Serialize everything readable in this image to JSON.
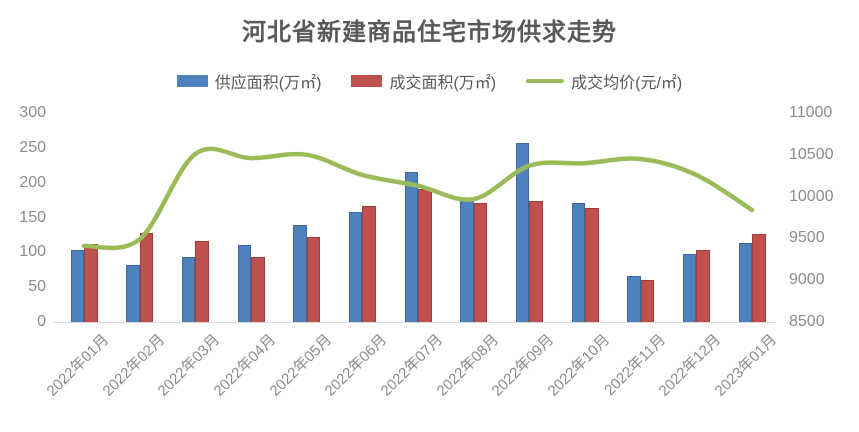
{
  "chart_data": {
    "type": "bar",
    "subtype": "combo-bar-line",
    "title": "河北省新建商品住宅市场供求走势",
    "categories": [
      "2022年01月",
      "2022年02月",
      "2022年03月",
      "2022年04月",
      "2022年05月",
      "2022年06月",
      "2022年07月",
      "2022年08月",
      "2022年09月",
      "2022年10月",
      "2022年11月",
      "2022年12月",
      "2023年01月"
    ],
    "series": [
      {
        "key": "supply-area",
        "name": "供应面积(万㎡)",
        "type": "bar",
        "axis": "left",
        "color": "#4F81BD",
        "border_color": "#3E68A0",
        "values": [
          103,
          82,
          93,
          111,
          139,
          158,
          215,
          174,
          257,
          171,
          66,
          98,
          113
        ]
      },
      {
        "key": "sold-area",
        "name": "成交面积(万㎡)",
        "type": "bar",
        "axis": "left",
        "color": "#C0504D",
        "border_color": "#9C3E3B",
        "values": [
          112,
          128,
          116,
          93,
          122,
          167,
          191,
          171,
          174,
          164,
          60,
          103,
          126
        ]
      },
      {
        "key": "avg-price",
        "name": "成交均价(元/㎡)",
        "type": "line",
        "axis": "right",
        "color": "#9BBB59",
        "values": [
          9410,
          9490,
          10510,
          10460,
          10500,
          10260,
          10130,
          9970,
          10370,
          10400,
          10450,
          10260,
          9840
        ]
      }
    ],
    "left_axis": {
      "min": 0,
      "max": 300,
      "step": 50,
      "ticks": [
        "0",
        "50",
        "100",
        "150",
        "200",
        "250",
        "300"
      ]
    },
    "right_axis": {
      "min": 8500,
      "max": 11000,
      "step": 500,
      "ticks": [
        "8500",
        "9000",
        "9500",
        "10000",
        "10500",
        "11000"
      ]
    },
    "grid": false,
    "legend_position": "top"
  },
  "colors": {
    "title_text": "#595959",
    "legend_text": "#595959",
    "axis_text": "#8C8C8C",
    "axis_line": "#D9D9D9",
    "background": "#FFFFFF"
  }
}
